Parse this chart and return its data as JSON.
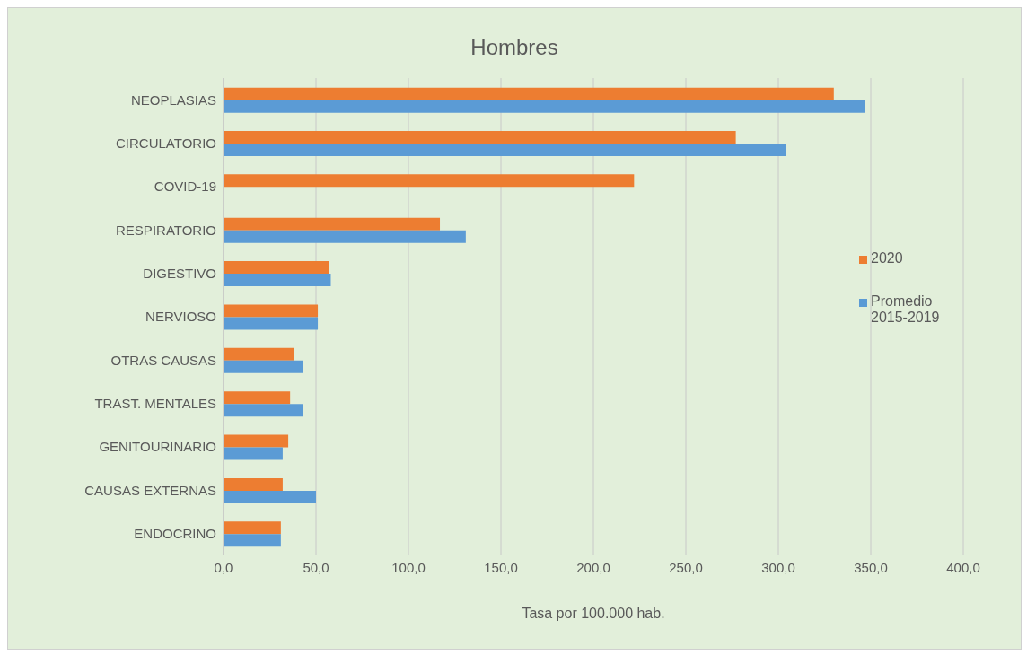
{
  "chart_data": {
    "type": "bar",
    "orientation": "horizontal",
    "title": "Hombres",
    "xlabel": "Tasa por 100.000 hab.",
    "categories": [
      "NEOPLASIAS",
      "CIRCULATORIO",
      "COVID-19",
      "RESPIRATORIO",
      "DIGESTIVO",
      "NERVIOSO",
      "OTRAS CAUSAS",
      "TRAST. MENTALES",
      "GENITOURINARIO",
      "CAUSAS EXTERNAS",
      "ENDOCRINO"
    ],
    "series": [
      {
        "name": "2020",
        "color": "#ed7d31",
        "values": [
          330,
          277,
          222,
          117,
          57,
          51,
          38,
          36,
          35,
          32,
          31
        ]
      },
      {
        "name": "Promedio 2015-2019",
        "color": "#5b9bd5",
        "values": [
          347,
          304,
          null,
          131,
          58,
          51,
          43,
          43,
          32,
          50,
          31
        ]
      }
    ],
    "xlim": [
      0,
      400
    ],
    "xticks": [
      {
        "value": 0,
        "label": "0,0"
      },
      {
        "value": 50,
        "label": "50,0"
      },
      {
        "value": 100,
        "label": "100,0"
      },
      {
        "value": 150,
        "label": "150,0"
      },
      {
        "value": 200,
        "label": "200,0"
      },
      {
        "value": 250,
        "label": "250,0"
      },
      {
        "value": 300,
        "label": "300,0"
      },
      {
        "value": 350,
        "label": "350,0"
      },
      {
        "value": 400,
        "label": "400,0"
      }
    ],
    "grid": "x",
    "legend": "right"
  }
}
